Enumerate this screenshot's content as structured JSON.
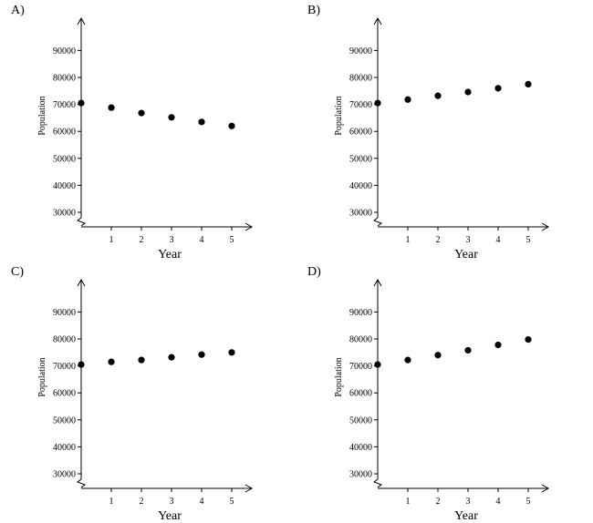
{
  "chart_data": [
    {
      "panel_label": "A)",
      "type": "scatter",
      "xlabel": "Year",
      "ylabel": "Population",
      "x_ticks": [
        "1",
        "2",
        "3",
        "4",
        "5"
      ],
      "y_ticks": [
        "30000",
        "40000",
        "50000",
        "60000",
        "70000",
        "80000",
        "90000"
      ],
      "xlim": [
        0,
        5
      ],
      "ylim": [
        30000,
        90000
      ],
      "y_axis_break": true,
      "grid": false,
      "points": [
        {
          "x": 0,
          "y": 70500
        },
        {
          "x": 1,
          "y": 68800
        },
        {
          "x": 2,
          "y": 66800
        },
        {
          "x": 3,
          "y": 65200
        },
        {
          "x": 4,
          "y": 63500
        },
        {
          "x": 5,
          "y": 62000
        }
      ]
    },
    {
      "panel_label": "B)",
      "type": "scatter",
      "xlabel": "Year",
      "ylabel": "Population",
      "x_ticks": [
        "1",
        "2",
        "3",
        "4",
        "5"
      ],
      "y_ticks": [
        "30000",
        "40000",
        "50000",
        "60000",
        "70000",
        "80000",
        "90000"
      ],
      "xlim": [
        0,
        5
      ],
      "ylim": [
        30000,
        90000
      ],
      "y_axis_break": true,
      "grid": false,
      "points": [
        {
          "x": 0,
          "y": 70500
        },
        {
          "x": 1,
          "y": 71800
        },
        {
          "x": 2,
          "y": 73200
        },
        {
          "x": 3,
          "y": 74600
        },
        {
          "x": 4,
          "y": 76000
        },
        {
          "x": 5,
          "y": 77500
        }
      ]
    },
    {
      "panel_label": "C)",
      "type": "scatter",
      "xlabel": "Year",
      "ylabel": "Population",
      "x_ticks": [
        "1",
        "2",
        "3",
        "4",
        "5"
      ],
      "y_ticks": [
        "30000",
        "40000",
        "50000",
        "60000",
        "70000",
        "80000",
        "90000"
      ],
      "xlim": [
        0,
        5
      ],
      "ylim": [
        30000,
        90000
      ],
      "y_axis_break": true,
      "grid": false,
      "points": [
        {
          "x": 0,
          "y": 70500
        },
        {
          "x": 1,
          "y": 71500
        },
        {
          "x": 2,
          "y": 72200
        },
        {
          "x": 3,
          "y": 73200
        },
        {
          "x": 4,
          "y": 74200
        },
        {
          "x": 5,
          "y": 75000
        }
      ]
    },
    {
      "panel_label": "D)",
      "type": "scatter",
      "xlabel": "Year",
      "ylabel": "Population",
      "x_ticks": [
        "1",
        "2",
        "3",
        "4",
        "5"
      ],
      "y_ticks": [
        "30000",
        "40000",
        "50000",
        "60000",
        "70000",
        "80000",
        "90000"
      ],
      "xlim": [
        0,
        5
      ],
      "ylim": [
        30000,
        90000
      ],
      "y_axis_break": true,
      "grid": false,
      "points": [
        {
          "x": 0,
          "y": 70500
        },
        {
          "x": 1,
          "y": 72200
        },
        {
          "x": 2,
          "y": 74000
        },
        {
          "x": 3,
          "y": 75800
        },
        {
          "x": 4,
          "y": 77800
        },
        {
          "x": 5,
          "y": 79800
        }
      ]
    }
  ]
}
